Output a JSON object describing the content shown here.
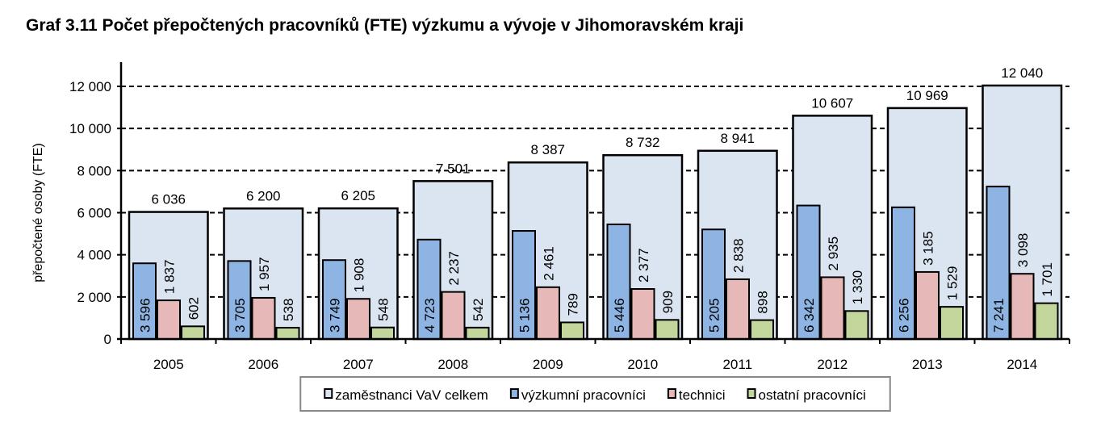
{
  "chart_data": {
    "type": "bar",
    "title": "Graf 3.11 Počet přepočtených pracovníků (FTE) výzkumu a vývoje v Jihomoravském kraji",
    "xlabel": "",
    "ylabel": "přepočtené osoby (FTE)",
    "ylim": [
      0,
      12000
    ],
    "yticks": [
      0,
      2000,
      4000,
      6000,
      8000,
      10000,
      12000
    ],
    "ytick_labels": [
      "0",
      "2 000",
      "4 000",
      "6 000",
      "8 000",
      "10 000",
      "12 000"
    ],
    "grid": "horizontal dashed",
    "legend_position": "bottom",
    "categories": [
      "2005",
      "2006",
      "2007",
      "2008",
      "2009",
      "2010",
      "2011",
      "2012",
      "2013",
      "2014"
    ],
    "series": [
      {
        "name": "zaměstnanci VaV celkem",
        "color": "#dbe5f1",
        "values": [
          6036,
          6200,
          6205,
          7501,
          8387,
          8732,
          8941,
          10607,
          10969,
          12040
        ],
        "labels": [
          "6 036",
          "6 200",
          "6 205",
          "7 501",
          "8 387",
          "8 732",
          "8 941",
          "10 607",
          "10 969",
          "12 040"
        ]
      },
      {
        "name": "výzkumní pracovníci",
        "color": "#8eb4e3",
        "values": [
          3596,
          3705,
          3749,
          4723,
          5136,
          5446,
          5205,
          6342,
          6256,
          7241
        ],
        "labels": [
          "3 596",
          "3 705",
          "3 749",
          "4 723",
          "5 136",
          "5 446",
          "5 205",
          "6 342",
          "6 256",
          "7 241"
        ]
      },
      {
        "name": "technici",
        "color": "#e6b9b8",
        "values": [
          1837,
          1957,
          1908,
          2237,
          2461,
          2377,
          2838,
          2935,
          3185,
          3098
        ],
        "labels": [
          "1 837",
          "1 957",
          "1 908",
          "2 237",
          "2 461",
          "2 377",
          "2 838",
          "2 935",
          "3 185",
          "3 098"
        ]
      },
      {
        "name": "ostatní pracovníci",
        "color": "#c3d69b",
        "values": [
          602,
          538,
          548,
          542,
          789,
          909,
          898,
          1330,
          1529,
          1701
        ],
        "labels": [
          "602",
          "538",
          "548",
          "542",
          "789",
          "909",
          "898",
          "1 330",
          "1 529",
          "1 701"
        ]
      }
    ]
  }
}
